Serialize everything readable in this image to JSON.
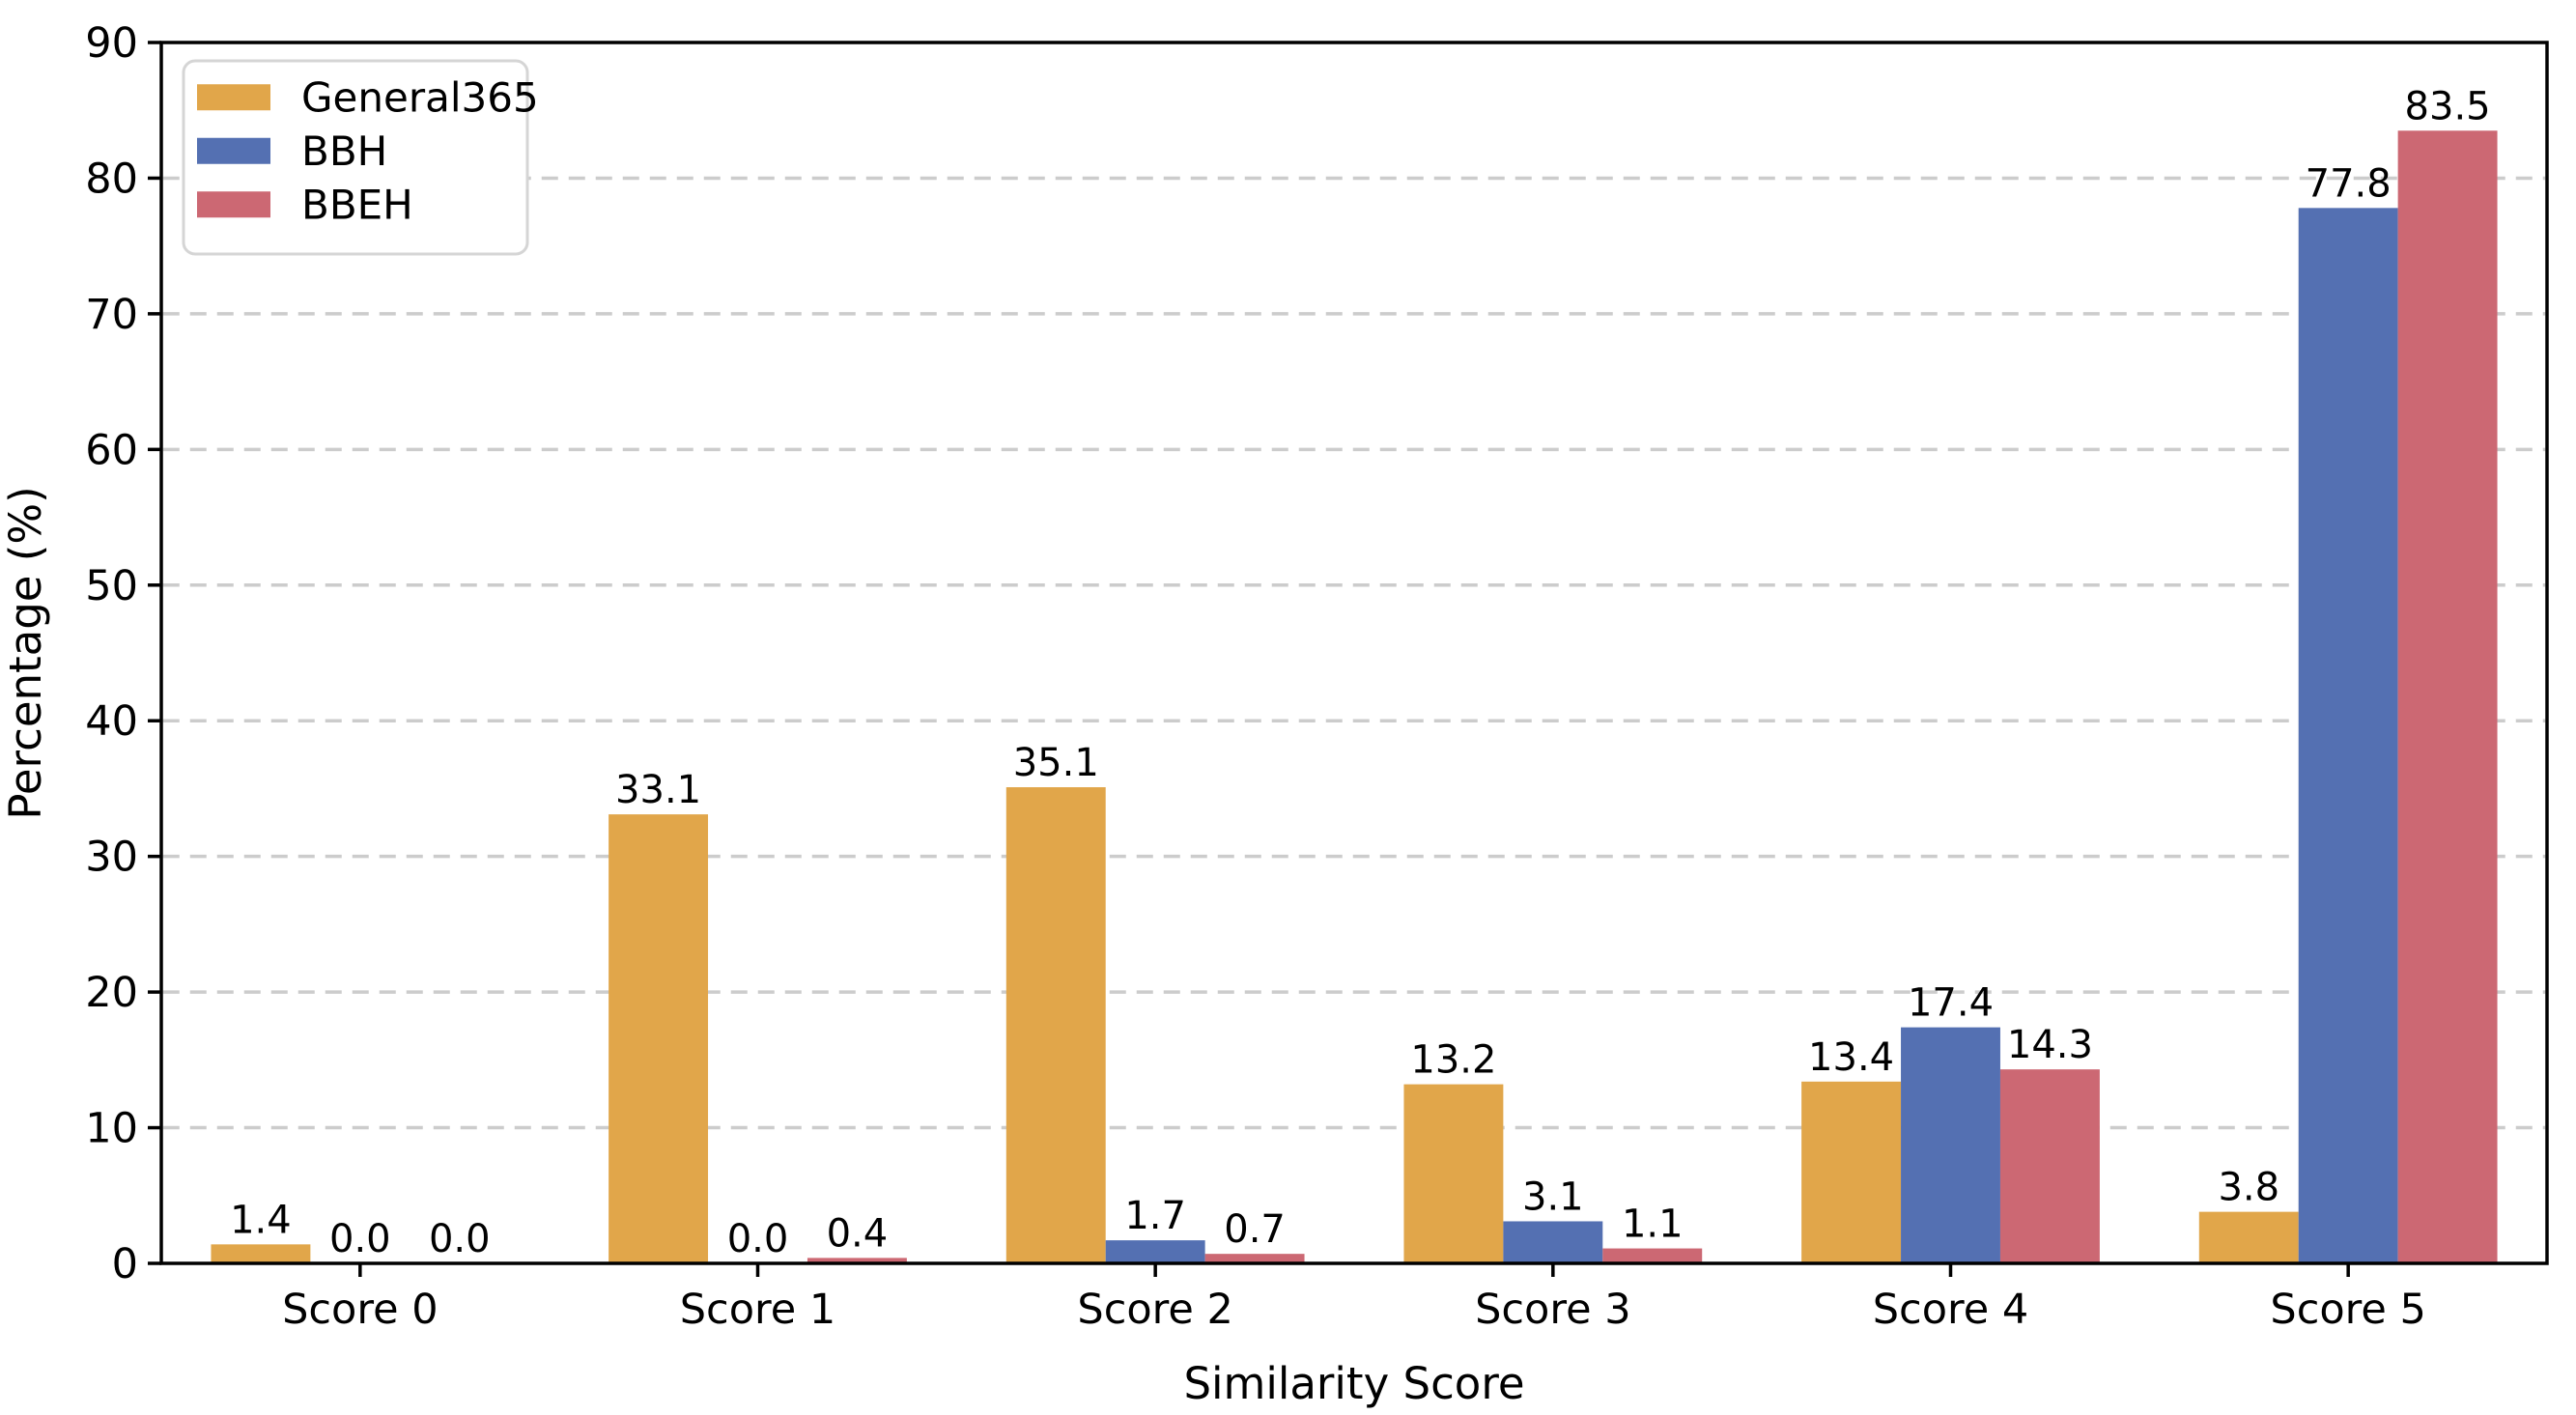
{
  "chart_data": {
    "type": "bar",
    "title": "",
    "xlabel": "Similarity Score",
    "ylabel": "Percentage (%)",
    "categories": [
      "Score 0",
      "Score 1",
      "Score 2",
      "Score 3",
      "Score 4",
      "Score 5"
    ],
    "series": [
      {
        "name": "General365",
        "color": "#E1A64A",
        "values": [
          1.4,
          33.1,
          35.1,
          13.2,
          13.4,
          3.8
        ]
      },
      {
        "name": "BBH",
        "color": "#5470B2",
        "values": [
          0.0,
          0.0,
          1.7,
          3.1,
          17.4,
          77.8
        ]
      },
      {
        "name": "BBEH",
        "color": "#CC6873",
        "values": [
          0.0,
          0.4,
          0.7,
          1.1,
          14.3,
          83.5
        ]
      }
    ],
    "ylim": [
      0,
      90
    ],
    "yticks": [
      0,
      10,
      20,
      30,
      40,
      50,
      60,
      70,
      80,
      90
    ],
    "grid": true,
    "grid_style": "dashed",
    "grid_color": "#cccccc",
    "axis_color": "#000000",
    "background_color": "#ffffff",
    "legend_position": "upper left",
    "bar_value_labels_shown": true,
    "value_format": "one_decimal"
  }
}
